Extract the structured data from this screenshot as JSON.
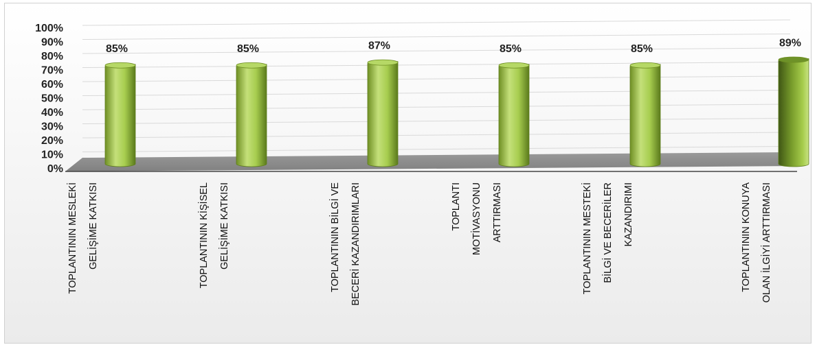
{
  "chart_data": {
    "type": "bar",
    "title": "",
    "xlabel": "",
    "ylabel": "",
    "ylim": [
      0,
      100
    ],
    "y_ticks": [
      "0%",
      "10%",
      "20%",
      "30%",
      "40%",
      "50%",
      "60%",
      "70%",
      "80%",
      "90%",
      "100%"
    ],
    "categories": [
      [
        "TOPLANTININ MESLEKİ",
        "GELİŞİME  KATKISI"
      ],
      [
        "TOPLANTININ KİŞİSEL",
        "GELİŞİME KATKISI"
      ],
      [
        "TOPLANTININ BİLGİ VE",
        "BECERİ KAZANDIRIMLARI"
      ],
      [
        "TOPLANTI",
        "MOTİVASYONU",
        "ARTTIRMASI"
      ],
      [
        "TOPLANTININ MESTEKİ",
        "BİLGİ VE BECERİLER",
        "KAZANDIRIMI"
      ],
      [
        "TOPLANTININ KONUYA",
        "OLAN İLGİYİ ARTTIRMASI"
      ]
    ],
    "values": [
      85,
      85,
      87,
      85,
      85,
      89
    ],
    "data_labels": [
      "85%",
      "85%",
      "87%",
      "85%",
      "85%",
      "89%"
    ],
    "grid": true,
    "legend": "none",
    "colors": {
      "bar_light": "#c4e07a",
      "bar_mid": "#93c13a",
      "bar_dark": "#5b7a1c",
      "bar_last_dark": "#3f5614",
      "floor": "#8c8c8c",
      "grid": "#d9d9d9"
    }
  }
}
